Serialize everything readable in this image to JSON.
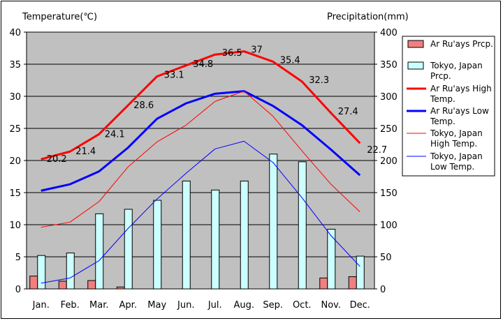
{
  "chart_data": {
    "type": "bar+line",
    "y_left_label": "Temperature(℃)",
    "y_right_label": "Precipitation(mm)",
    "categories": [
      "Jan.",
      "Feb.",
      "Mar.",
      "Apr.",
      "May",
      "Jun.",
      "Jul.",
      "Aug.",
      "Sep.",
      "Oct.",
      "Nov.",
      "Dec."
    ],
    "ylim_left": [
      0,
      40
    ],
    "yticks_left": [
      "0",
      "5",
      "10",
      "15",
      "20",
      "25",
      "30",
      "35",
      "40"
    ],
    "ylim_right": [
      0,
      400
    ],
    "yticks_right": [
      "0",
      "50",
      "100",
      "150",
      "200",
      "250",
      "300",
      "350",
      "400"
    ],
    "grid": true,
    "legend_position": "right",
    "bars": [
      {
        "name": "Ar Ru'ays Prcp.",
        "color": "#f08080",
        "values": [
          20,
          12,
          13,
          3,
          0,
          0,
          0,
          0,
          0,
          0,
          17,
          19
        ]
      },
      {
        "name": "Tokyo, Japan Prcp.",
        "color": "#ccffff",
        "values": [
          52,
          56,
          117,
          124,
          138,
          168,
          154,
          168,
          210,
          198,
          93,
          51
        ]
      }
    ],
    "lines": [
      {
        "name": "Ar Ru'ays High Temp.",
        "color": "#ff0000",
        "width": 3,
        "values": [
          20.2,
          21.4,
          24.1,
          28.6,
          33.1,
          34.8,
          36.5,
          37,
          35.4,
          32.3,
          27.4,
          22.7
        ],
        "labels": [
          "20.2",
          "21.4",
          "24.1",
          "28.6",
          "33.1",
          "34.8",
          "36.5",
          "37",
          "35.4",
          "32.3",
          "27.4",
          "22.7"
        ]
      },
      {
        "name": "Ar Ru'ays Low Temp.",
        "color": "#0000ff",
        "width": 3,
        "values": [
          15.3,
          16.3,
          18.3,
          22.0,
          26.5,
          28.9,
          30.4,
          30.8,
          28.5,
          25.5,
          21.7,
          17.7
        ]
      },
      {
        "name": "Tokyo, Japan High Temp.",
        "color": "#ff0000",
        "width": 1,
        "values": [
          9.6,
          10.4,
          13.6,
          19.0,
          22.9,
          25.5,
          29.2,
          30.8,
          26.9,
          21.5,
          16.3,
          12.0
        ]
      },
      {
        "name": "Tokyo, Japan Low Temp.",
        "color": "#0000ff",
        "width": 1,
        "values": [
          0.9,
          1.7,
          4.4,
          9.4,
          14.0,
          18.0,
          21.8,
          23.0,
          19.7,
          14.2,
          8.3,
          3.5
        ]
      }
    ],
    "legend": [
      {
        "kind": "bar",
        "color": "#f08080",
        "lines": [
          "Ar Ru'ays Prcp."
        ]
      },
      {
        "kind": "bar",
        "color": "#ccffff",
        "lines": [
          "Tokyo, Japan",
          "Prcp."
        ]
      },
      {
        "kind": "line",
        "color": "#ff0000",
        "width": 3,
        "lines": [
          "Ar Ru'ays High",
          "Temp."
        ]
      },
      {
        "kind": "line",
        "color": "#0000ff",
        "width": 3,
        "lines": [
          "Ar Ru'ays Low",
          "Temp."
        ]
      },
      {
        "kind": "line",
        "color": "#ff0000",
        "width": 1,
        "lines": [
          "Tokyo, Japan",
          "High Temp."
        ]
      },
      {
        "kind": "line",
        "color": "#0000ff",
        "width": 1,
        "lines": [
          "Tokyo, Japan",
          "Low Temp."
        ]
      }
    ]
  }
}
